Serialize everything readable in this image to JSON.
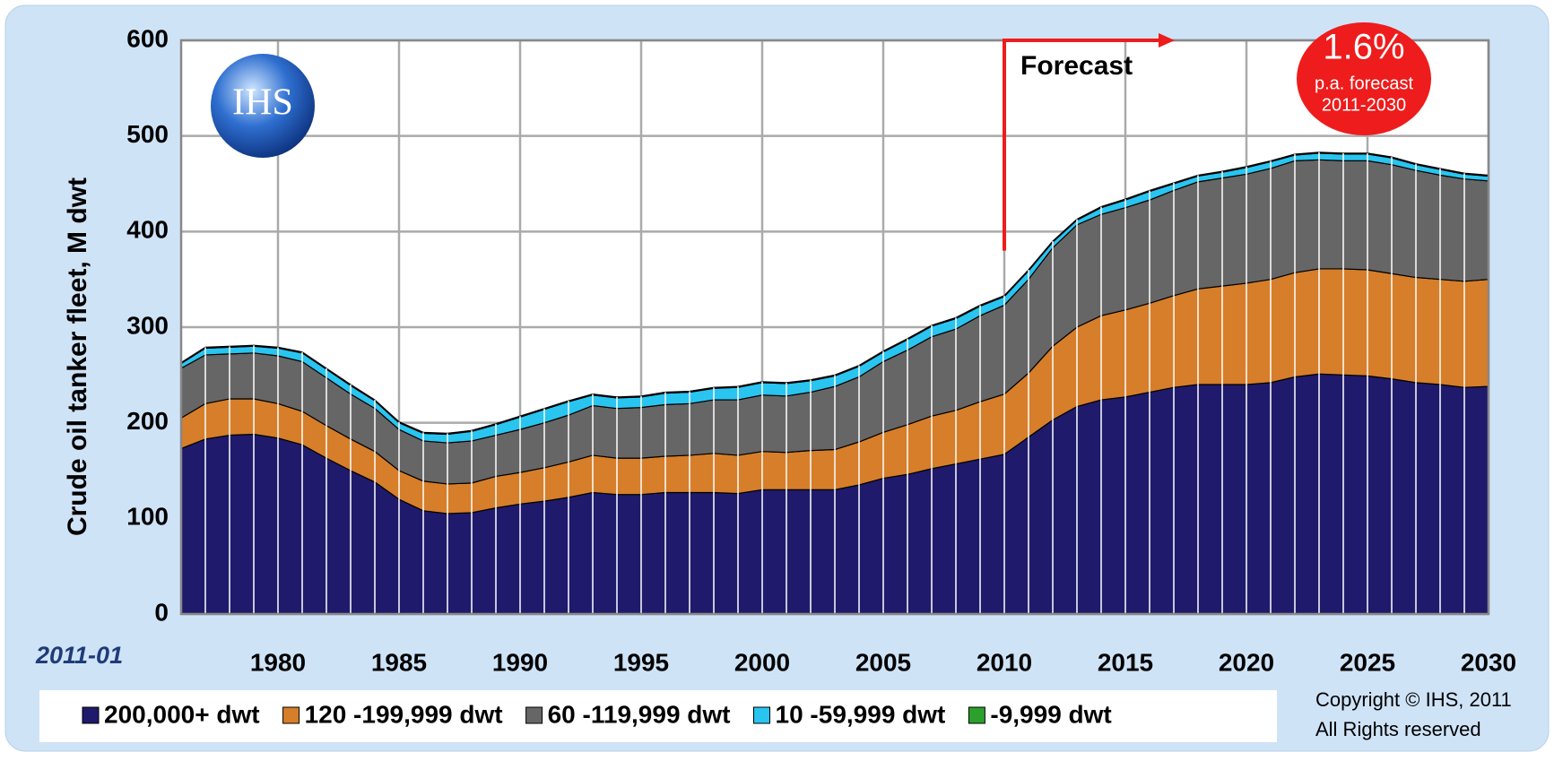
{
  "chart_data": {
    "type": "stacked_area",
    "y_label": "Crude oil tanker fleet, M dwt",
    "date_label": "2011-01",
    "logo": "IHS",
    "annotations": [
      {
        "text": "Forecast",
        "x": 2010
      }
    ],
    "badge": {
      "value": "1.6%",
      "line1": "p.a. forecast",
      "line2": "2011-2030"
    },
    "copyright": [
      "Copyright © IHS, 2011",
      "All Rights reserved"
    ],
    "x": [
      1976,
      1977,
      1978,
      1979,
      1980,
      1981,
      1982,
      1983,
      1984,
      1985,
      1986,
      1987,
      1988,
      1989,
      1990,
      1991,
      1992,
      1993,
      1994,
      1995,
      1996,
      1997,
      1998,
      1999,
      2000,
      2001,
      2002,
      2003,
      2004,
      2005,
      2006,
      2007,
      2008,
      2009,
      2010,
      2011,
      2012,
      2013,
      2014,
      2015,
      2016,
      2017,
      2018,
      2019,
      2020,
      2021,
      2022,
      2023,
      2024,
      2025,
      2026,
      2027,
      2028,
      2029,
      2030
    ],
    "xlim": [
      1976,
      2030
    ],
    "xticks": [
      1980,
      1985,
      1990,
      1995,
      2000,
      2005,
      2010,
      2015,
      2020,
      2025,
      2030
    ],
    "ylim": [
      0,
      600
    ],
    "yticks": [
      0,
      100,
      200,
      300,
      400,
      500,
      600
    ],
    "grid": true,
    "series": [
      {
        "name": "200,000+ dwt",
        "color": "#1f1a6b",
        "values": [
          173,
          183,
          187,
          188,
          184,
          177,
          163,
          150,
          138,
          120,
          108,
          105,
          106,
          111,
          115,
          118,
          122,
          127,
          125,
          125,
          127,
          127,
          127,
          126,
          130,
          130,
          130,
          130,
          135,
          142,
          146,
          152,
          157,
          162,
          167,
          185,
          203,
          217,
          224,
          227,
          232,
          237,
          240,
          240,
          240,
          242,
          248,
          251,
          250,
          249,
          246,
          242,
          240,
          237,
          238
        ]
      },
      {
        "name": "120 -199,999 dwt",
        "color": "#d67e2a",
        "values": [
          32,
          37,
          38,
          37,
          36,
          35,
          34,
          33,
          32,
          30,
          31,
          31,
          31,
          33,
          33,
          35,
          37,
          39,
          38,
          38,
          38,
          39,
          41,
          40,
          40,
          39,
          41,
          42,
          45,
          48,
          52,
          55,
          56,
          60,
          63,
          67,
          77,
          83,
          88,
          91,
          93,
          96,
          100,
          103,
          106,
          108,
          109,
          110,
          111,
          111,
          110,
          110,
          110,
          111,
          112
        ]
      },
      {
        "name": "60 -119,999 dwt",
        "color": "#666666",
        "values": [
          52,
          51,
          47,
          48,
          50,
          52,
          50,
          47,
          45,
          43,
          42,
          43,
          44,
          43,
          45,
          47,
          49,
          52,
          52,
          53,
          54,
          54,
          56,
          58,
          59,
          59,
          61,
          66,
          68,
          74,
          78,
          83,
          85,
          90,
          93,
          98,
          103,
          107,
          106,
          107,
          108,
          110,
          112,
          113,
          114,
          116,
          117,
          114,
          113,
          114,
          114,
          112,
          109,
          107,
          103
        ]
      },
      {
        "name": "10 -59,999 dwt",
        "color": "#29c5f0",
        "values": [
          5,
          7,
          7,
          7,
          8,
          9,
          9,
          9,
          8,
          7,
          8,
          9,
          10,
          11,
          13,
          14,
          14,
          11,
          11,
          11,
          12,
          12,
          12,
          13,
          13,
          13,
          12,
          11,
          11,
          10,
          11,
          11,
          11,
          10,
          9,
          9,
          6,
          5,
          7,
          8,
          9,
          7,
          6,
          6,
          7,
          7,
          6,
          7,
          7,
          7,
          7,
          6,
          6,
          5,
          5
        ]
      },
      {
        "name": "-9,999 dwt",
        "color": "#2ca02c",
        "values": [
          1,
          1,
          1,
          1,
          1,
          1,
          1,
          1,
          1,
          1,
          1,
          1,
          1,
          1,
          1,
          1,
          1,
          1,
          1,
          1,
          1,
          1,
          1,
          1,
          1,
          1,
          1,
          1,
          1,
          1,
          1,
          1,
          1,
          1,
          1,
          1,
          1,
          1,
          1,
          1,
          1,
          1,
          1,
          1,
          1,
          1,
          1,
          1,
          1,
          1,
          1,
          1,
          1,
          1,
          1
        ]
      }
    ]
  }
}
